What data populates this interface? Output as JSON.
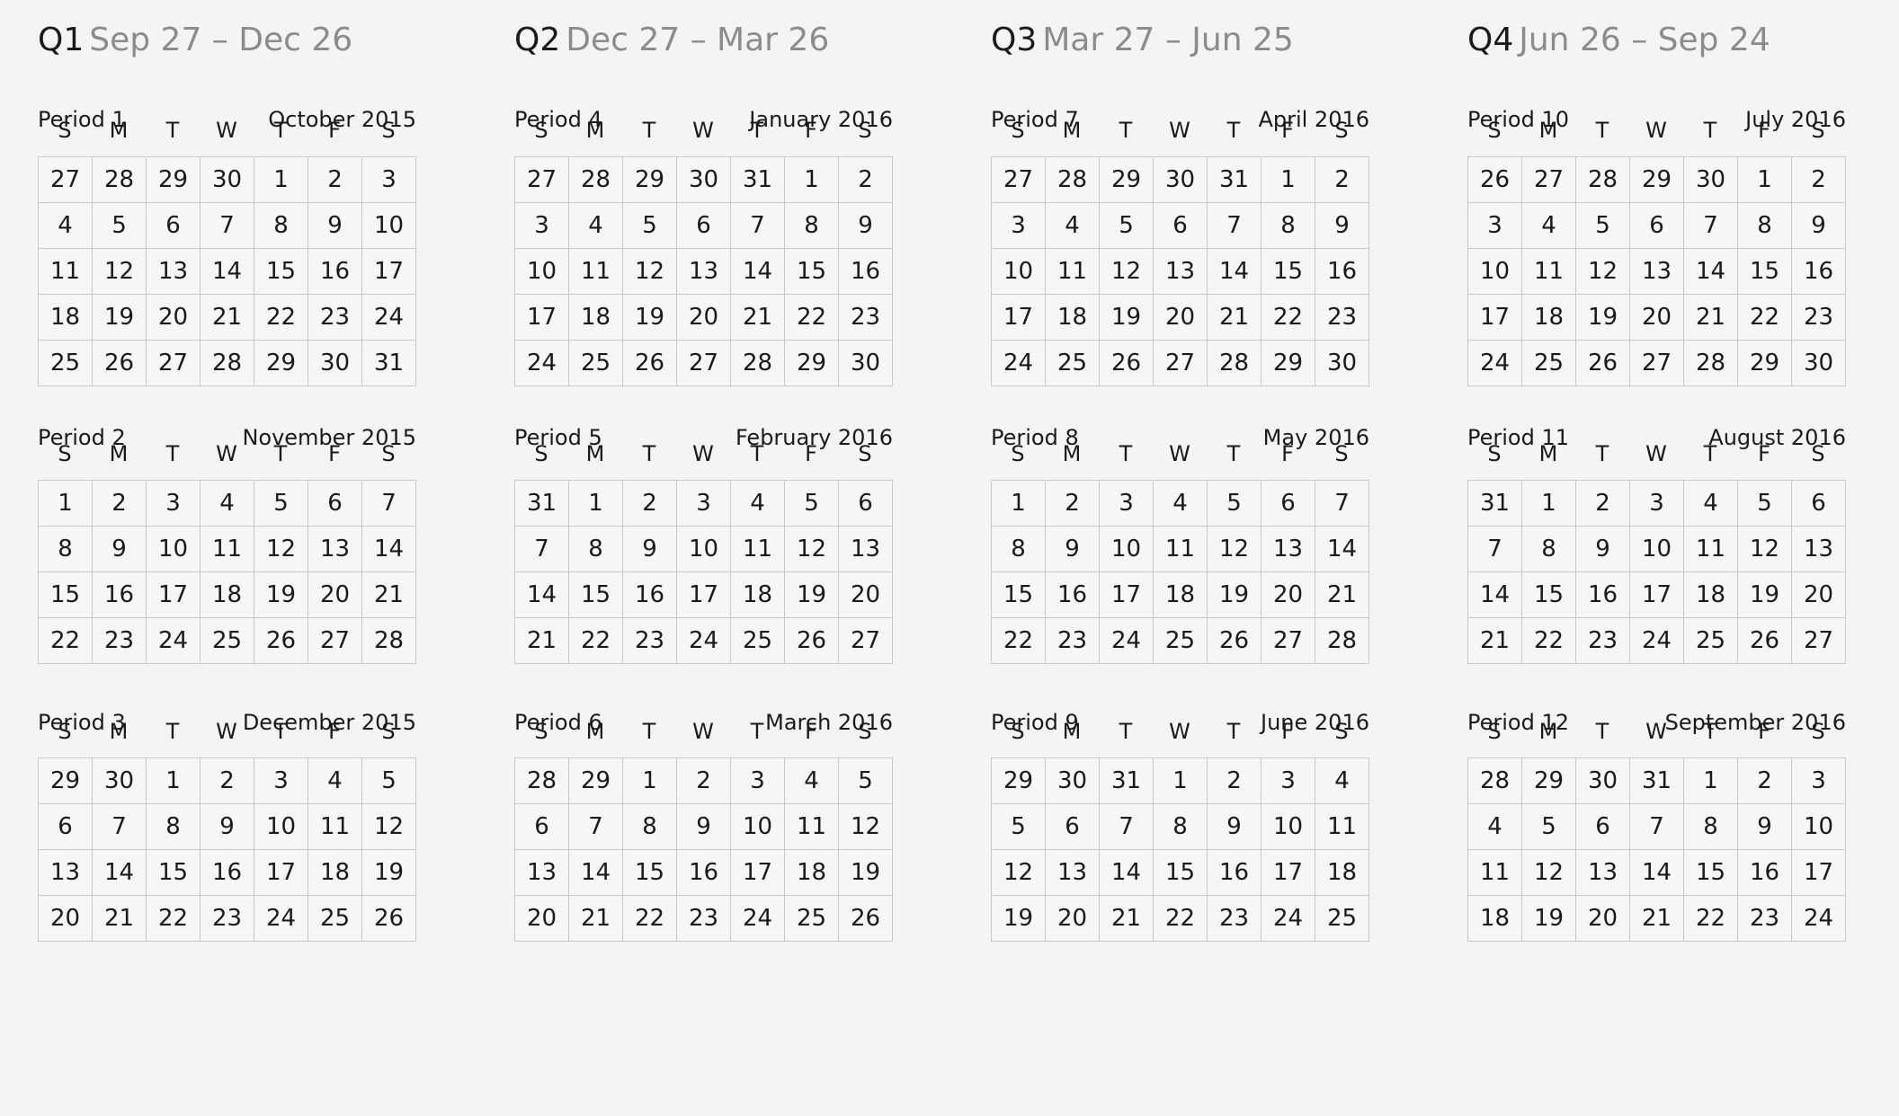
{
  "dow": [
    "S",
    "M",
    "T",
    "W",
    "T",
    "F",
    "S"
  ],
  "quarters": [
    {
      "label": "Q1",
      "range": "Sep 27 – Dec 26",
      "periods": [
        {
          "label": "Period 1",
          "month": "October 2015",
          "rows": [
            [
              "27",
              "28",
              "29",
              "30",
              "1",
              "2",
              "3"
            ],
            [
              "4",
              "5",
              "6",
              "7",
              "8",
              "9",
              "10"
            ],
            [
              "11",
              "12",
              "13",
              "14",
              "15",
              "16",
              "17"
            ],
            [
              "18",
              "19",
              "20",
              "21",
              "22",
              "23",
              "24"
            ],
            [
              "25",
              "26",
              "27",
              "28",
              "29",
              "30",
              "31"
            ]
          ]
        },
        {
          "label": "Period 2",
          "month": "November 2015",
          "rows": [
            [
              "1",
              "2",
              "3",
              "4",
              "5",
              "6",
              "7"
            ],
            [
              "8",
              "9",
              "10",
              "11",
              "12",
              "13",
              "14"
            ],
            [
              "15",
              "16",
              "17",
              "18",
              "19",
              "20",
              "21"
            ],
            [
              "22",
              "23",
              "24",
              "25",
              "26",
              "27",
              "28"
            ]
          ]
        },
        {
          "label": "Period 3",
          "month": "December 2015",
          "rows": [
            [
              "29",
              "30",
              "1",
              "2",
              "3",
              "4",
              "5"
            ],
            [
              "6",
              "7",
              "8",
              "9",
              "10",
              "11",
              "12"
            ],
            [
              "13",
              "14",
              "15",
              "16",
              "17",
              "18",
              "19"
            ],
            [
              "20",
              "21",
              "22",
              "23",
              "24",
              "25",
              "26"
            ]
          ]
        }
      ]
    },
    {
      "label": "Q2",
      "range": "Dec 27 – Mar 26",
      "periods": [
        {
          "label": "Period 4",
          "month": "January 2016",
          "rows": [
            [
              "27",
              "28",
              "29",
              "30",
              "31",
              "1",
              "2"
            ],
            [
              "3",
              "4",
              "5",
              "6",
              "7",
              "8",
              "9"
            ],
            [
              "10",
              "11",
              "12",
              "13",
              "14",
              "15",
              "16"
            ],
            [
              "17",
              "18",
              "19",
              "20",
              "21",
              "22",
              "23"
            ],
            [
              "24",
              "25",
              "26",
              "27",
              "28",
              "29",
              "30"
            ]
          ]
        },
        {
          "label": "Period 5",
          "month": "February 2016",
          "rows": [
            [
              "31",
              "1",
              "2",
              "3",
              "4",
              "5",
              "6"
            ],
            [
              "7",
              "8",
              "9",
              "10",
              "11",
              "12",
              "13"
            ],
            [
              "14",
              "15",
              "16",
              "17",
              "18",
              "19",
              "20"
            ],
            [
              "21",
              "22",
              "23",
              "24",
              "25",
              "26",
              "27"
            ]
          ]
        },
        {
          "label": "Period 6",
          "month": "March 2016",
          "rows": [
            [
              "28",
              "29",
              "1",
              "2",
              "3",
              "4",
              "5"
            ],
            [
              "6",
              "7",
              "8",
              "9",
              "10",
              "11",
              "12"
            ],
            [
              "13",
              "14",
              "15",
              "16",
              "17",
              "18",
              "19"
            ],
            [
              "20",
              "21",
              "22",
              "23",
              "24",
              "25",
              "26"
            ]
          ]
        }
      ]
    },
    {
      "label": "Q3",
      "range": "Mar 27 – Jun 25",
      "periods": [
        {
          "label": "Period 7",
          "month": "April 2016",
          "rows": [
            [
              "27",
              "28",
              "29",
              "30",
              "31",
              "1",
              "2"
            ],
            [
              "3",
              "4",
              "5",
              "6",
              "7",
              "8",
              "9"
            ],
            [
              "10",
              "11",
              "12",
              "13",
              "14",
              "15",
              "16"
            ],
            [
              "17",
              "18",
              "19",
              "20",
              "21",
              "22",
              "23"
            ],
            [
              "24",
              "25",
              "26",
              "27",
              "28",
              "29",
              "30"
            ]
          ]
        },
        {
          "label": "Period 8",
          "month": "May 2016",
          "rows": [
            [
              "1",
              "2",
              "3",
              "4",
              "5",
              "6",
              "7"
            ],
            [
              "8",
              "9",
              "10",
              "11",
              "12",
              "13",
              "14"
            ],
            [
              "15",
              "16",
              "17",
              "18",
              "19",
              "20",
              "21"
            ],
            [
              "22",
              "23",
              "24",
              "25",
              "26",
              "27",
              "28"
            ]
          ]
        },
        {
          "label": "Period 9",
          "month": "June 2016",
          "rows": [
            [
              "29",
              "30",
              "31",
              "1",
              "2",
              "3",
              "4"
            ],
            [
              "5",
              "6",
              "7",
              "8",
              "9",
              "10",
              "11"
            ],
            [
              "12",
              "13",
              "14",
              "15",
              "16",
              "17",
              "18"
            ],
            [
              "19",
              "20",
              "21",
              "22",
              "23",
              "24",
              "25"
            ]
          ]
        }
      ]
    },
    {
      "label": "Q4",
      "range": "Jun 26 – Sep 24",
      "periods": [
        {
          "label": "Period 10",
          "month": "July 2016",
          "rows": [
            [
              "26",
              "27",
              "28",
              "29",
              "30",
              "1",
              "2"
            ],
            [
              "3",
              "4",
              "5",
              "6",
              "7",
              "8",
              "9"
            ],
            [
              "10",
              "11",
              "12",
              "13",
              "14",
              "15",
              "16"
            ],
            [
              "17",
              "18",
              "19",
              "20",
              "21",
              "22",
              "23"
            ],
            [
              "24",
              "25",
              "26",
              "27",
              "28",
              "29",
              "30"
            ]
          ]
        },
        {
          "label": "Period 11",
          "month": "August 2016",
          "rows": [
            [
              "31",
              "1",
              "2",
              "3",
              "4",
              "5",
              "6"
            ],
            [
              "7",
              "8",
              "9",
              "10",
              "11",
              "12",
              "13"
            ],
            [
              "14",
              "15",
              "16",
              "17",
              "18",
              "19",
              "20"
            ],
            [
              "21",
              "22",
              "23",
              "24",
              "25",
              "26",
              "27"
            ]
          ]
        },
        {
          "label": "Period 12",
          "month": "September 2016",
          "rows": [
            [
              "28",
              "29",
              "30",
              "31",
              "1",
              "2",
              "3"
            ],
            [
              "4",
              "5",
              "6",
              "7",
              "8",
              "9",
              "10"
            ],
            [
              "11",
              "12",
              "13",
              "14",
              "15",
              "16",
              "17"
            ],
            [
              "18",
              "19",
              "20",
              "21",
              "22",
              "23",
              "24"
            ]
          ]
        }
      ]
    }
  ]
}
